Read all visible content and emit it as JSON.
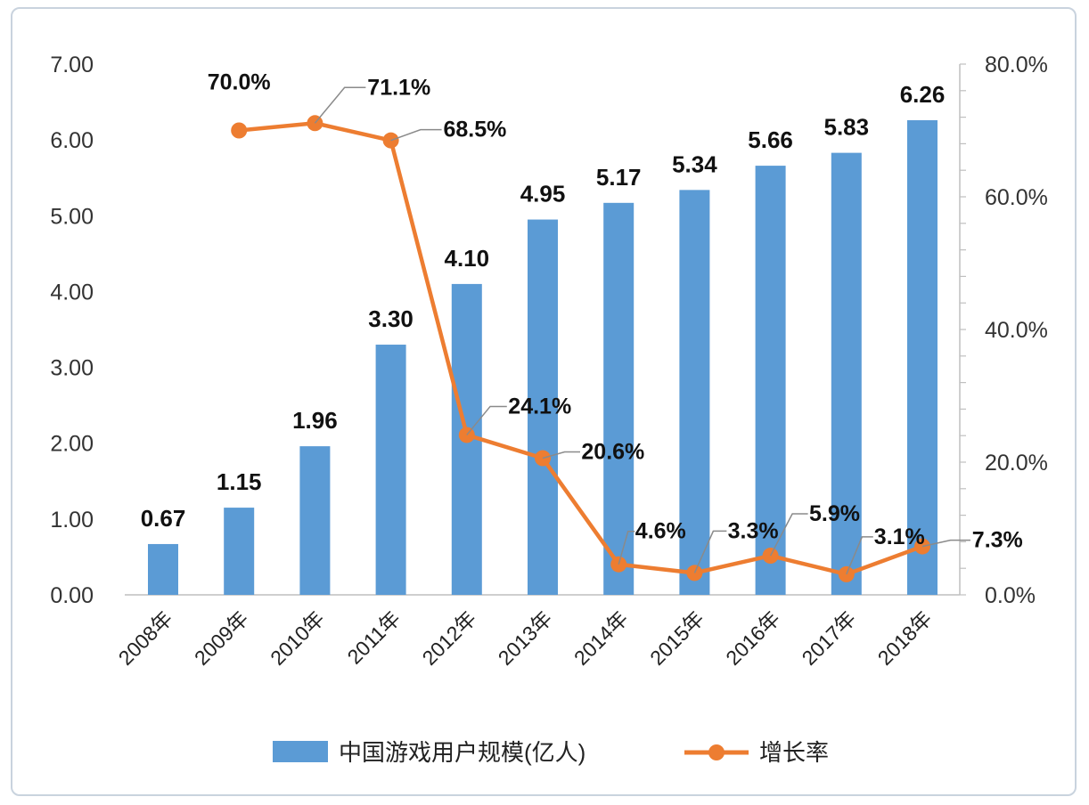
{
  "chart_data": {
    "type": "bar+line",
    "categories": [
      "2008年",
      "2009年",
      "2010年",
      "2011年",
      "2012年",
      "2013年",
      "2014年",
      "2015年",
      "2016年",
      "2017年",
      "2018年"
    ],
    "series": [
      {
        "name": "中国游戏用户规模(亿人)",
        "type": "bar",
        "axis": "left",
        "color": "#5b9bd5",
        "values": [
          0.67,
          1.15,
          1.96,
          3.3,
          4.1,
          4.95,
          5.17,
          5.34,
          5.66,
          5.83,
          6.26
        ],
        "labels": [
          "0.67",
          "1.15",
          "1.96",
          "3.30",
          "4.10",
          "4.95",
          "5.17",
          "5.34",
          "5.66",
          "5.83",
          "6.26"
        ]
      },
      {
        "name": "增长率",
        "type": "line",
        "axis": "right",
        "color": "#ed7d31",
        "values": [
          null,
          70.0,
          71.1,
          68.5,
          24.1,
          20.6,
          4.6,
          3.3,
          5.9,
          3.1,
          7.3
        ],
        "labels": [
          "",
          "70.0%",
          "71.1%",
          "68.5%",
          "24.1%",
          "20.6%",
          "4.6%",
          "3.3%",
          "5.9%",
          "3.1%",
          "7.3%"
        ]
      }
    ],
    "left_axis": {
      "ylim": [
        0,
        7
      ],
      "ticks": [
        "0.00",
        "1.00",
        "2.00",
        "3.00",
        "4.00",
        "5.00",
        "6.00",
        "7.00"
      ]
    },
    "right_axis": {
      "ylim": [
        0,
        80
      ],
      "ticks": [
        "0.0%",
        "20.0%",
        "40.0%",
        "60.0%",
        "80.0%"
      ]
    },
    "legend": {
      "position": "bottom",
      "items": [
        "中国游戏用户规模(亿人)",
        "增长率"
      ]
    },
    "grid": false
  }
}
